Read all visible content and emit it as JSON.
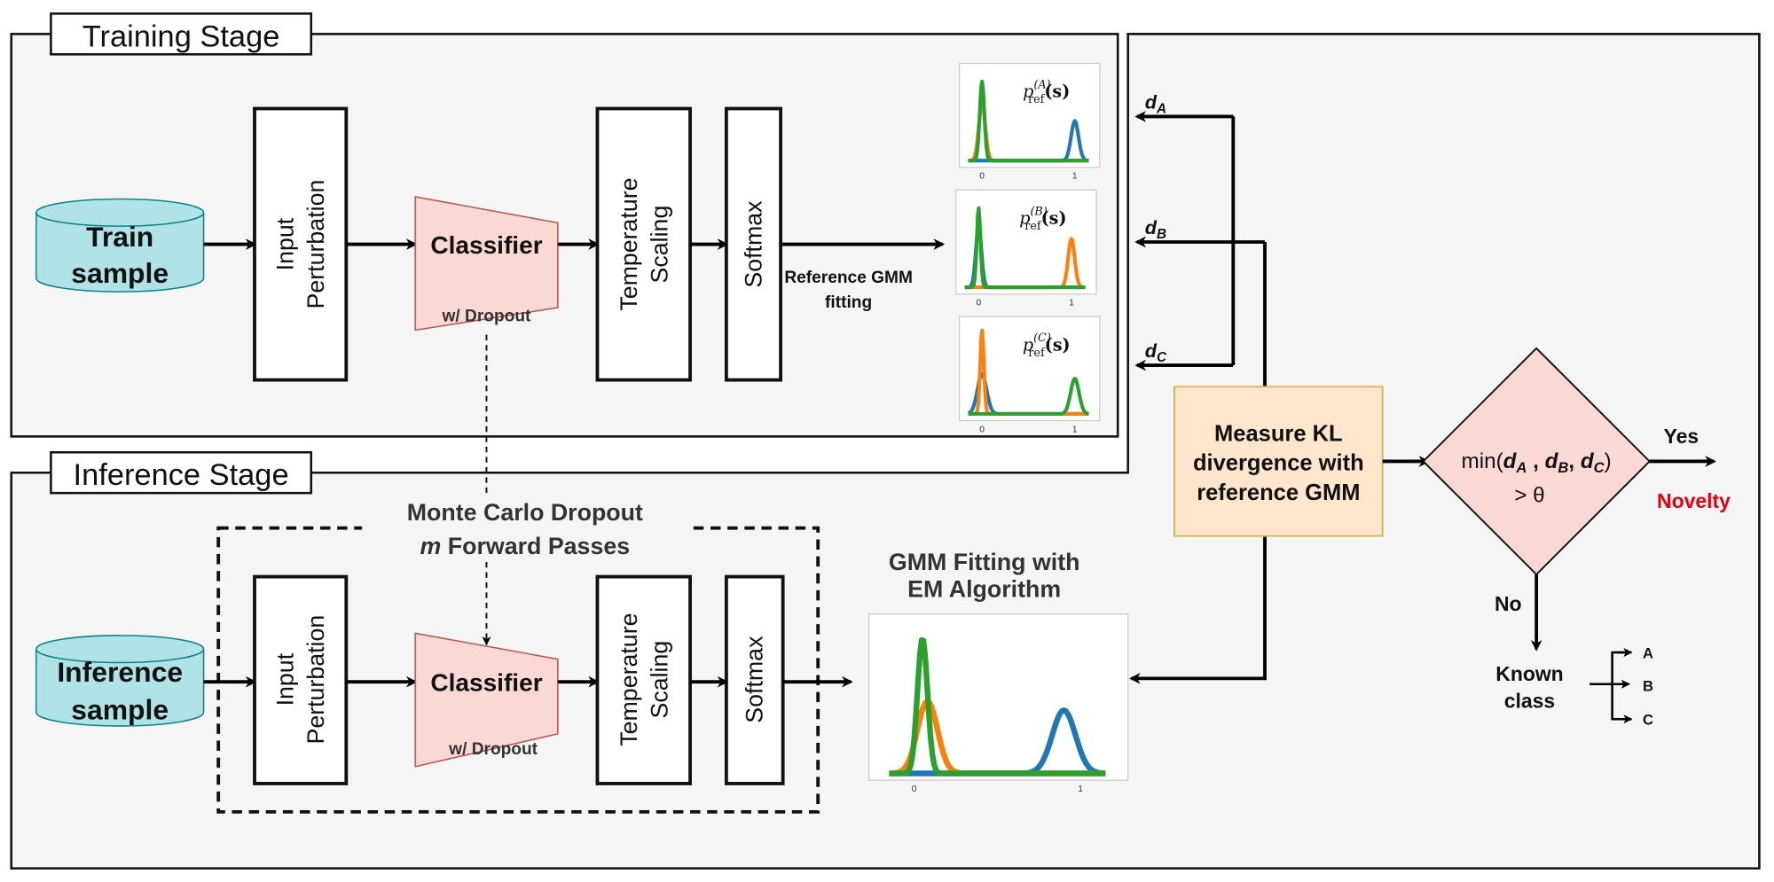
{
  "training": {
    "stage_label": "Training Stage",
    "sample_line1": "Train",
    "sample_line2": "sample",
    "perturb_line1": "Input",
    "perturb_line2": "Perturbation",
    "classifier": "Classifier",
    "dropout": "w/ Dropout",
    "temp_line1": "Temperature",
    "temp_line2": "Scaling",
    "softmax": "Softmax",
    "ref_fit_line1": "Reference GMM",
    "ref_fit_line2": "fitting"
  },
  "inference": {
    "stage_label": "Inference Stage",
    "sample_line1": "Inference",
    "sample_line2": "sample",
    "perturb_line1": "Input",
    "perturb_line2": "Perturbation",
    "classifier": "Classifier",
    "dropout": "w/ Dropout",
    "temp_line1": "Temperature",
    "temp_line2": "Scaling",
    "softmax": "Softmax",
    "mc_line1": "Monte Carlo Dropout",
    "mc_italic": "m",
    "mc_line2": " Forward Passes",
    "gmm_line1": "GMM Fitting with",
    "gmm_line2": "EM Algorithm"
  },
  "colors": {
    "blue": "#1f77b4",
    "orange": "#ff7f0e",
    "green": "#2ca02c",
    "novelty": "#e3000f",
    "sample_fill": "#b0e3e6",
    "classifier_fill": "#fad9d5",
    "kl_fill": "#ffe6cc",
    "diamond_fill": "#fad9d5"
  },
  "ref_plots": [
    {
      "p": "p",
      "sub": "ref",
      "sup": "(A)",
      "arg": "(s)",
      "ticks": [
        "0",
        "1"
      ],
      "components": [
        {
          "color": "orange",
          "mean": 0,
          "sd": 0.035,
          "peak": 0.65
        },
        {
          "color": "blue",
          "mean": 1,
          "sd": 0.04,
          "peak": 0.45
        },
        {
          "color": "green",
          "mean": 0,
          "sd": 0.025,
          "peak": 0.9
        }
      ]
    },
    {
      "p": "p",
      "sub": "ref",
      "sup": "(B)",
      "arg": "(s)",
      "ticks": [
        "0",
        "1"
      ],
      "components": [
        {
          "color": "blue",
          "mean": 0,
          "sd": 0.03,
          "peak": 0.7
        },
        {
          "color": "orange",
          "mean": 1,
          "sd": 0.035,
          "peak": 0.55
        },
        {
          "color": "green",
          "mean": 0,
          "sd": 0.02,
          "peak": 0.9
        }
      ]
    },
    {
      "p": "p",
      "sub": "ref",
      "sup": "(C)",
      "arg": "(s)",
      "ticks": [
        "0",
        "1"
      ],
      "components": [
        {
          "color": "blue",
          "mean": 0,
          "sd": 0.05,
          "peak": 0.45
        },
        {
          "color": "orange",
          "mean": 0,
          "sd": 0.02,
          "peak": 0.95
        },
        {
          "color": "green",
          "mean": 1,
          "sd": 0.045,
          "peak": 0.4
        }
      ]
    }
  ],
  "gmm_plot": {
    "ticks": [
      "0",
      "1"
    ],
    "components": [
      {
        "color": "blue",
        "mean": 0.9,
        "sd": 0.07,
        "peak": 0.42
      },
      {
        "color": "orange",
        "mean": 0.08,
        "sd": 0.06,
        "peak": 0.48
      },
      {
        "color": "green",
        "mean": 0.05,
        "sd": 0.03,
        "peak": 0.9
      }
    ]
  },
  "distances": {
    "d": "d",
    "a": "A",
    "b": "B",
    "c": "C"
  },
  "kl": {
    "line1": "Measure KL",
    "line2": "divergence with",
    "line3": "reference GMM"
  },
  "decision": {
    "prefix": "min(",
    "sep1": " , ",
    "sep2": ", ",
    "suffix": ")",
    "line2": "> θ",
    "yes": "Yes",
    "no": "No",
    "novelty": "Novelty"
  },
  "known": {
    "line1": "Known",
    "line2": "class",
    "classes": [
      "A",
      "B",
      "C"
    ]
  }
}
